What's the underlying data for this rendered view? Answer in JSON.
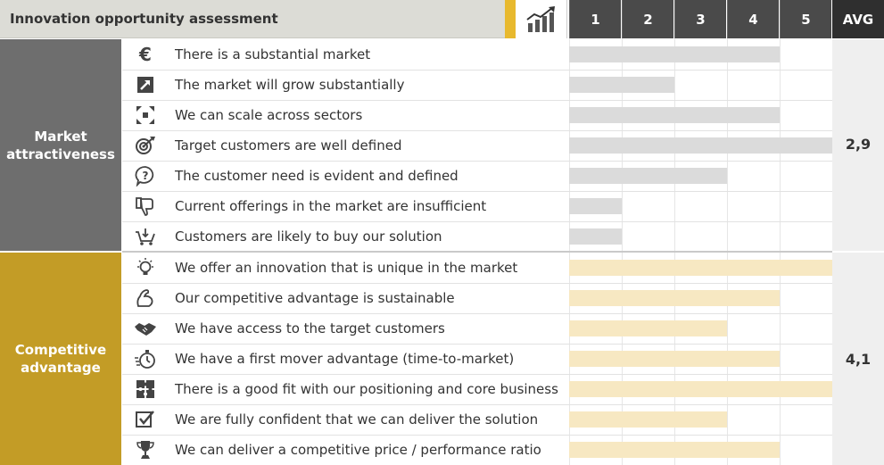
{
  "header": {
    "title": "Innovation opportunity assessment",
    "scale": [
      "1",
      "2",
      "3",
      "4",
      "5"
    ],
    "avg_label": "AVG"
  },
  "colors": {
    "market": "#6e6e6e",
    "competitive": "#c39c26",
    "market_bar": "#dbdbdb",
    "competitive_bar": "#f7e8c2",
    "accent": "#e8b92e"
  },
  "chart_data": {
    "type": "bar",
    "xlim": [
      0,
      5
    ],
    "groups": [
      {
        "name": "Market attractiveness",
        "avg": "2,9",
        "items": [
          {
            "icon": "euro-icon",
            "label": "There is a substantial market",
            "value": 4
          },
          {
            "icon": "growth-arrow-icon",
            "label": "The market will grow substantially",
            "value": 2
          },
          {
            "icon": "expand-icon",
            "label": "We can scale across sectors",
            "value": 4
          },
          {
            "icon": "target-icon",
            "label": "Target customers are well defined",
            "value": 5
          },
          {
            "icon": "question-bubble-icon",
            "label": "The customer need is evident and defined",
            "value": 3
          },
          {
            "icon": "thumbs-down-icon",
            "label": "Current offerings in the market are insufficient",
            "value": 1
          },
          {
            "icon": "shopping-cart-icon",
            "label": "Customers are likely to buy our solution",
            "value": 1
          }
        ]
      },
      {
        "name": "Competitive advantage",
        "avg": "4,1",
        "items": [
          {
            "icon": "lightbulb-icon",
            "label": "We offer an innovation that is unique in the market",
            "value": 5
          },
          {
            "icon": "muscle-icon",
            "label": "Our competitive advantage is sustainable",
            "value": 4
          },
          {
            "icon": "handshake-icon",
            "label": "We have access to the target customers",
            "value": 3
          },
          {
            "icon": "stopwatch-icon",
            "label": "We have a first mover advantage (time-to-market)",
            "value": 4
          },
          {
            "icon": "puzzle-icon",
            "label": "There is a good fit with our positioning and core business",
            "value": 5
          },
          {
            "icon": "checkbox-icon",
            "label": "We are fully confident that we can deliver the solution",
            "value": 3
          },
          {
            "icon": "trophy-icon",
            "label": "We can deliver a competitive price / performance ratio",
            "value": 4
          }
        ]
      }
    ]
  }
}
